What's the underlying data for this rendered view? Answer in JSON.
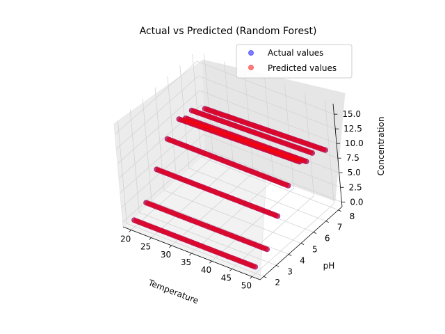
{
  "chart_data": {
    "type": "scatter3d",
    "title": "Actual vs Predicted (Random Forest)",
    "xlabel": "Temperature",
    "ylabel": "pH",
    "zlabel": "Concentration",
    "xlim": [
      18,
      52
    ],
    "ylim": [
      1.7,
      8.3
    ],
    "zlim": [
      -0.8,
      16.8
    ],
    "xticks": [
      20,
      25,
      30,
      35,
      40,
      45,
      50
    ],
    "yticks": [
      2,
      3,
      4,
      5,
      6,
      7,
      8
    ],
    "zticks": [
      "0.0",
      "2.5",
      "5.0",
      "7.5",
      "10.0",
      "12.5",
      "15.0"
    ],
    "grid": true,
    "legend_position": "upper right",
    "series": [
      {
        "name": "Actual values",
        "color": "#0000ff",
        "alpha": 0.5,
        "lines": [
          {
            "y": 2,
            "x": [
              20,
              50
            ],
            "z": [
              0.3,
              0.3
            ]
          },
          {
            "y": 3,
            "x": [
              20,
              50
            ],
            "z": [
              1.4,
              1.4
            ]
          },
          {
            "y": 4,
            "x": [
              20,
              50
            ],
            "z": [
              5.2,
              5.2
            ]
          },
          {
            "y": 5,
            "x": [
              20,
              50
            ],
            "z": [
              8.5,
              8.5
            ]
          },
          {
            "y": 6,
            "x": [
              20,
              50
            ],
            "z": [
              10.0,
              10.7
            ]
          },
          {
            "y": 7,
            "x": [
              20,
              50
            ],
            "z": [
              9.6,
              10.3
            ]
          },
          {
            "y": 8,
            "x": [
              20,
              50
            ],
            "z": [
              8.0,
              8.9
            ]
          },
          {
            "y": 6.5,
            "x": [
              20,
              50
            ],
            "z": [
              9.2,
              9.8
            ]
          }
        ]
      },
      {
        "name": "Predicted values",
        "color": "#ff0000",
        "alpha": 0.5,
        "lines": [
          {
            "y": 2,
            "x": [
              20,
              50
            ],
            "z": [
              0.3,
              0.3
            ]
          },
          {
            "y": 3,
            "x": [
              20,
              50
            ],
            "z": [
              1.4,
              1.4
            ]
          },
          {
            "y": 4,
            "x": [
              20,
              50
            ],
            "z": [
              5.2,
              5.2
            ]
          },
          {
            "y": 5,
            "x": [
              20,
              50
            ],
            "z": [
              8.5,
              8.5
            ]
          },
          {
            "y": 6,
            "x": [
              20,
              50
            ],
            "z": [
              10.0,
              10.7
            ]
          },
          {
            "y": 7,
            "x": [
              20,
              50
            ],
            "z": [
              9.6,
              10.3
            ]
          },
          {
            "y": 8,
            "x": [
              20,
              50
            ],
            "z": [
              8.0,
              8.9
            ]
          },
          {
            "y": 6.5,
            "x": [
              20,
              50
            ],
            "z": [
              9.2,
              9.8
            ]
          }
        ]
      }
    ]
  }
}
